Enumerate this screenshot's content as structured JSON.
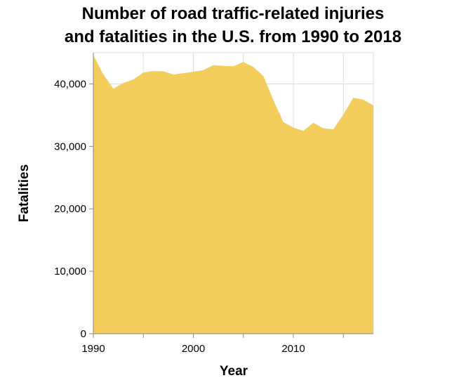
{
  "chart_data": {
    "type": "area",
    "title": [
      "Number of road traffic-related injuries",
      "and fatalities in the U.S. from 1990 to 2018"
    ],
    "xlabel": "Year",
    "ylabel": "Fatalities",
    "xlim": [
      1990,
      2018
    ],
    "ylim": [
      0,
      45000
    ],
    "x_ticks": [
      1990,
      1995,
      2000,
      2005,
      2010,
      2015
    ],
    "x_tick_labels": [
      "1990",
      "",
      "2000",
      "",
      "2010",
      ""
    ],
    "y_ticks": [
      0,
      10000,
      20000,
      30000,
      40000
    ],
    "y_tick_labels": [
      "0",
      "10,000",
      "20,000",
      "30,000",
      "40,000"
    ],
    "grid": true,
    "color": "#f2cd5c",
    "x": [
      1990,
      1991,
      1992,
      1993,
      1994,
      1995,
      1996,
      1997,
      1998,
      1999,
      2000,
      2001,
      2002,
      2003,
      2004,
      2005,
      2006,
      2007,
      2008,
      2009,
      2010,
      2011,
      2012,
      2013,
      2014,
      2015,
      2016,
      2017,
      2018
    ],
    "values": [
      44599,
      41508,
      39250,
      40150,
      40716,
      41817,
      42065,
      42013,
      41501,
      41717,
      41945,
      42196,
      43005,
      42884,
      42836,
      43510,
      42708,
      41259,
      37423,
      33883,
      32999,
      32479,
      33782,
      32893,
      32744,
      35092,
      37806,
      37473,
      36560
    ]
  }
}
